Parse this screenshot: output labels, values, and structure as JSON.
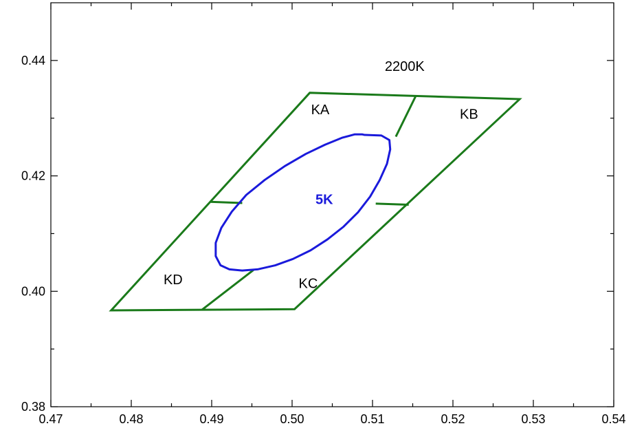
{
  "chart_data": {
    "type": "line",
    "title": "",
    "xlabel": "",
    "ylabel": "",
    "xlim": [
      0.47,
      0.54
    ],
    "ylim": [
      0.38,
      0.45
    ],
    "x_ticks": [
      "0.47",
      "0.48",
      "0.49",
      "0.50",
      "0.51",
      "0.52",
      "0.53",
      "0.54"
    ],
    "x_tick_values": [
      0.47,
      0.48,
      0.49,
      0.5,
      0.51,
      0.52,
      0.53,
      0.54
    ],
    "y_ticks": [
      "0.38",
      "0.40",
      "0.42",
      "0.44"
    ],
    "y_tick_values": [
      0.38,
      0.4,
      0.42,
      0.44
    ],
    "grid": false,
    "colors": {
      "region": "#1a7a1a",
      "ellipse": "#1a1adb",
      "axis": "#000000"
    },
    "quadrangle": {
      "outline": [
        [
          0.4775,
          0.3967
        ],
        [
          0.5003,
          0.3969
        ],
        [
          0.5283,
          0.4333
        ],
        [
          0.5022,
          0.4344
        ]
      ],
      "divider_lines": [
        [
          [
            0.4888,
            0.3968
          ],
          [
            0.4952,
            0.4037
          ]
        ],
        [
          [
            0.5129,
            0.4268
          ],
          [
            0.5154,
            0.4339
          ]
        ],
        [
          [
            0.4898,
            0.4155
          ],
          [
            0.4938,
            0.4153
          ]
        ],
        [
          [
            0.5104,
            0.4152
          ],
          [
            0.5145,
            0.415
          ]
        ]
      ]
    },
    "ellipse": {
      "points": [
        [
          0.509,
          0.4271
        ],
        [
          0.5087,
          0.4272
        ],
        [
          0.5078,
          0.4272
        ],
        [
          0.5062,
          0.4266
        ],
        [
          0.5041,
          0.4254
        ],
        [
          0.5017,
          0.4238
        ],
        [
          0.4991,
          0.4217
        ],
        [
          0.4966,
          0.4193
        ],
        [
          0.4943,
          0.4167
        ],
        [
          0.4925,
          0.4138
        ],
        [
          0.4912,
          0.411
        ],
        [
          0.4905,
          0.4084
        ],
        [
          0.4905,
          0.4061
        ],
        [
          0.4911,
          0.4045
        ],
        [
          0.4922,
          0.4038
        ],
        [
          0.4938,
          0.4036
        ],
        [
          0.4957,
          0.4038
        ],
        [
          0.4979,
          0.4045
        ],
        [
          0.5001,
          0.4056
        ],
        [
          0.5023,
          0.4071
        ],
        [
          0.5044,
          0.409
        ],
        [
          0.5064,
          0.4112
        ],
        [
          0.5082,
          0.4137
        ],
        [
          0.5097,
          0.4164
        ],
        [
          0.5109,
          0.4193
        ],
        [
          0.5118,
          0.4221
        ],
        [
          0.5122,
          0.4246
        ],
        [
          0.5121,
          0.4262
        ],
        [
          0.5111,
          0.427
        ],
        [
          0.509,
          0.4271
        ]
      ]
    },
    "annotations": [
      {
        "text": "2200K",
        "x": 0.514,
        "y": 0.4382
      },
      {
        "text": "KA",
        "x": 0.5035,
        "y": 0.4307
      },
      {
        "text": "KB",
        "x": 0.522,
        "y": 0.4299
      },
      {
        "text": "KC",
        "x": 0.502,
        "y": 0.4006
      },
      {
        "text": "KD",
        "x": 0.4852,
        "y": 0.4012
      },
      {
        "text": "5K",
        "x": 0.504,
        "y": 0.4151
      }
    ]
  }
}
